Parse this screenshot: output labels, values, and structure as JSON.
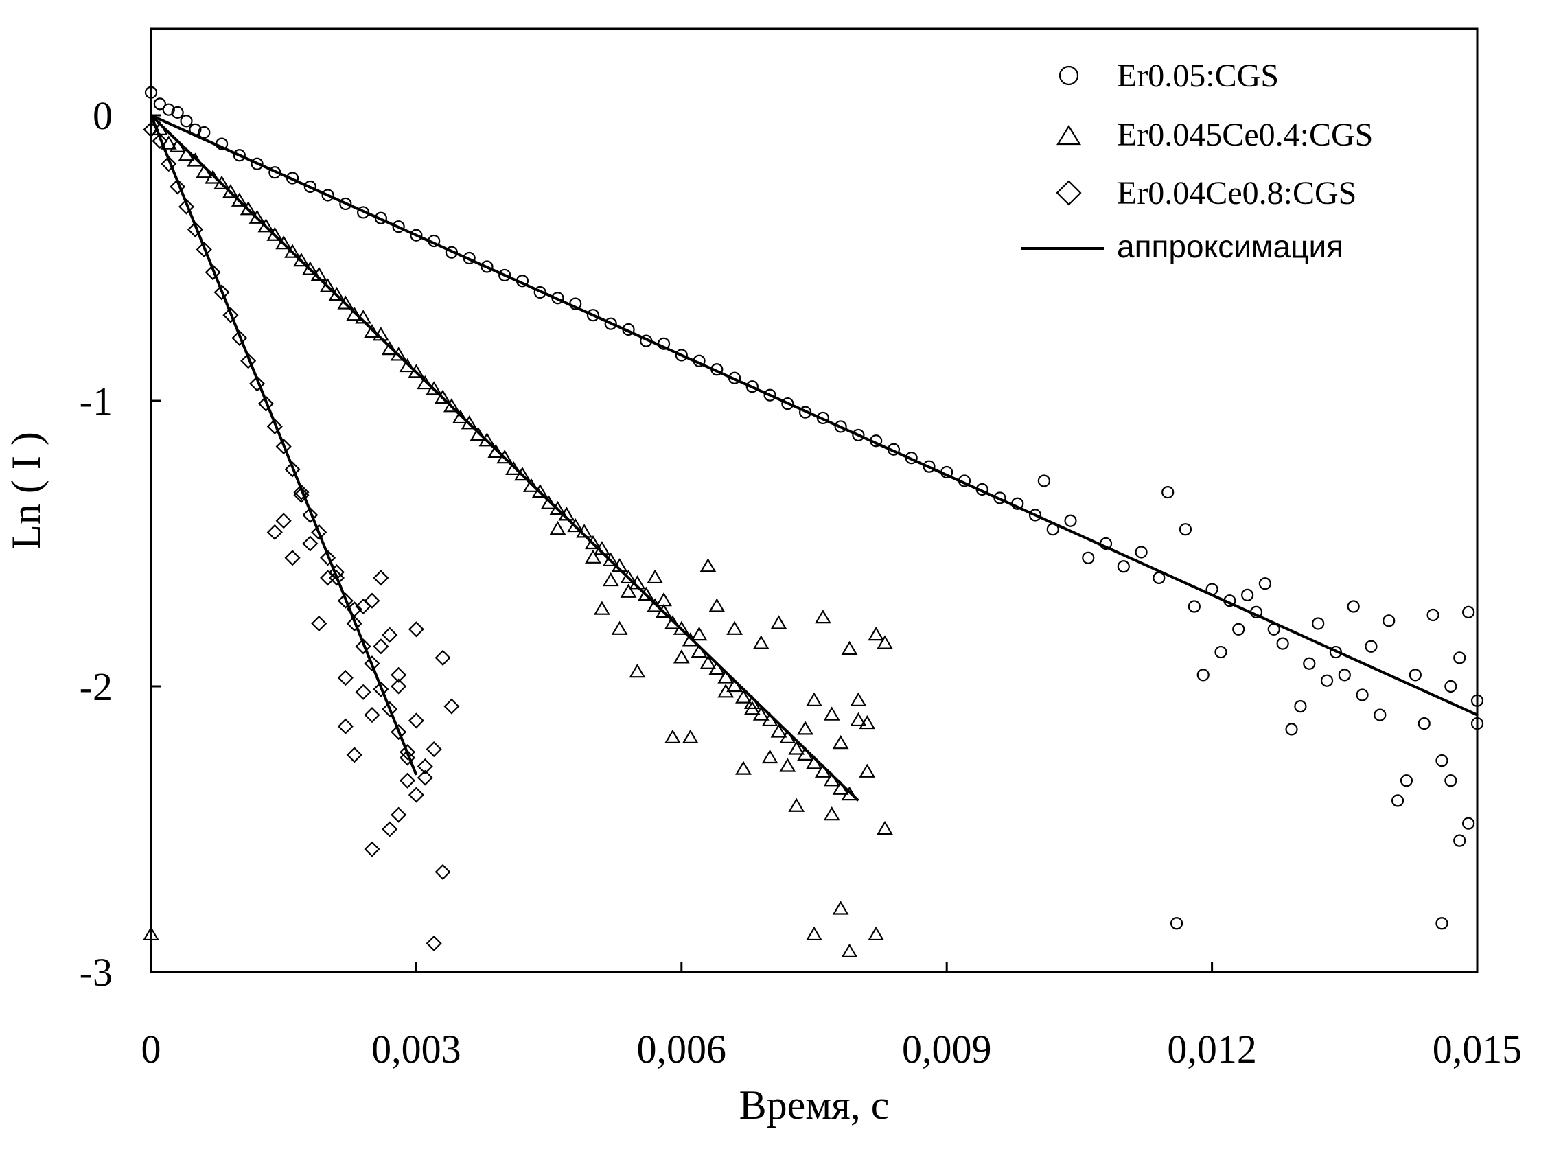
{
  "chart_data": {
    "type": "scatter",
    "title": "",
    "xlabel": "Время, с",
    "ylabel": "Ln ( I )",
    "xlim": [
      0,
      0.015
    ],
    "ylim": [
      -3,
      0.3
    ],
    "x_ticks": [
      0,
      0.003,
      0.006,
      0.009,
      0.012,
      0.015
    ],
    "x_tick_labels": [
      "0",
      "0,003",
      "0,006",
      "0,009",
      "0,012",
      "0,015"
    ],
    "y_ticks": [
      0,
      -1,
      -2,
      -3
    ],
    "y_tick_labels": [
      "0",
      "-1",
      "-2",
      "-3"
    ],
    "grid": false,
    "legend_position": "top-right",
    "series": [
      {
        "name": "Er0.05:CGS",
        "marker": "circle",
        "fit": {
          "slope": -140,
          "intercept": 0,
          "x_range": [
            0,
            0.015
          ]
        },
        "points": [
          [
            0.0,
            0.08
          ],
          [
            0.0001,
            0.04
          ],
          [
            0.0002,
            0.02
          ],
          [
            0.0003,
            0.01
          ],
          [
            0.0004,
            -0.02
          ],
          [
            0.0005,
            -0.05
          ],
          [
            0.0006,
            -0.06
          ],
          [
            0.0008,
            -0.1
          ],
          [
            0.001,
            -0.14
          ],
          [
            0.0012,
            -0.17
          ],
          [
            0.0014,
            -0.2
          ],
          [
            0.0016,
            -0.22
          ],
          [
            0.0018,
            -0.25
          ],
          [
            0.002,
            -0.28
          ],
          [
            0.0022,
            -0.31
          ],
          [
            0.0024,
            -0.34
          ],
          [
            0.0026,
            -0.36
          ],
          [
            0.0028,
            -0.39
          ],
          [
            0.003,
            -0.42
          ],
          [
            0.0032,
            -0.44
          ],
          [
            0.0034,
            -0.48
          ],
          [
            0.0036,
            -0.5
          ],
          [
            0.0038,
            -0.53
          ],
          [
            0.004,
            -0.56
          ],
          [
            0.0042,
            -0.58
          ],
          [
            0.0044,
            -0.62
          ],
          [
            0.0046,
            -0.64
          ],
          [
            0.0048,
            -0.66
          ],
          [
            0.005,
            -0.7
          ],
          [
            0.0052,
            -0.73
          ],
          [
            0.0054,
            -0.75
          ],
          [
            0.0056,
            -0.79
          ],
          [
            0.0058,
            -0.8
          ],
          [
            0.006,
            -0.84
          ],
          [
            0.0062,
            -0.86
          ],
          [
            0.0064,
            -0.89
          ],
          [
            0.0066,
            -0.92
          ],
          [
            0.0068,
            -0.95
          ],
          [
            0.007,
            -0.98
          ],
          [
            0.0072,
            -1.01
          ],
          [
            0.0074,
            -1.04
          ],
          [
            0.0076,
            -1.06
          ],
          [
            0.0078,
            -1.09
          ],
          [
            0.008,
            -1.12
          ],
          [
            0.0082,
            -1.14
          ],
          [
            0.0084,
            -1.17
          ],
          [
            0.0086,
            -1.2
          ],
          [
            0.0088,
            -1.23
          ],
          [
            0.009,
            -1.25
          ],
          [
            0.0092,
            -1.28
          ],
          [
            0.0094,
            -1.31
          ],
          [
            0.0096,
            -1.34
          ],
          [
            0.0098,
            -1.36
          ],
          [
            0.01,
            -1.4
          ],
          [
            0.0101,
            -1.28
          ],
          [
            0.0102,
            -1.45
          ],
          [
            0.0104,
            -1.42
          ],
          [
            0.0106,
            -1.55
          ],
          [
            0.0108,
            -1.5
          ],
          [
            0.011,
            -1.58
          ],
          [
            0.0112,
            -1.53
          ],
          [
            0.0114,
            -1.62
          ],
          [
            0.0115,
            -1.32
          ],
          [
            0.0116,
            -2.83
          ],
          [
            0.0117,
            -1.45
          ],
          [
            0.0118,
            -1.72
          ],
          [
            0.0119,
            -1.96
          ],
          [
            0.012,
            -1.66
          ],
          [
            0.0121,
            -1.88
          ],
          [
            0.0122,
            -1.7
          ],
          [
            0.0123,
            -1.8
          ],
          [
            0.0124,
            -1.68
          ],
          [
            0.0125,
            -1.74
          ],
          [
            0.0126,
            -1.64
          ],
          [
            0.0127,
            -1.8
          ],
          [
            0.0128,
            -1.85
          ],
          [
            0.0129,
            -2.15
          ],
          [
            0.013,
            -2.07
          ],
          [
            0.0131,
            -1.92
          ],
          [
            0.0132,
            -1.78
          ],
          [
            0.0133,
            -1.98
          ],
          [
            0.0134,
            -1.88
          ],
          [
            0.0135,
            -1.96
          ],
          [
            0.0136,
            -1.72
          ],
          [
            0.0137,
            -2.03
          ],
          [
            0.0138,
            -1.86
          ],
          [
            0.0139,
            -2.1
          ],
          [
            0.014,
            -1.77
          ],
          [
            0.0141,
            -2.4
          ],
          [
            0.0142,
            -2.33
          ],
          [
            0.0143,
            -1.96
          ],
          [
            0.0144,
            -2.13
          ],
          [
            0.0145,
            -1.75
          ],
          [
            0.0146,
            -2.26
          ],
          [
            0.0146,
            -2.83
          ],
          [
            0.0147,
            -2.0
          ],
          [
            0.0147,
            -2.33
          ],
          [
            0.0148,
            -1.9
          ],
          [
            0.0148,
            -2.54
          ],
          [
            0.0149,
            -2.48
          ],
          [
            0.0149,
            -1.74
          ],
          [
            0.015,
            -2.05
          ],
          [
            0.015,
            -2.13
          ]
        ]
      },
      {
        "name": "Er0.045Ce0.4:CGS",
        "marker": "triangle",
        "fit": {
          "slope": -300,
          "intercept": 0,
          "x_range": [
            0,
            0.008
          ]
        },
        "points": [
          [
            0.0,
            -2.87
          ],
          [
            0.0001,
            -0.05
          ],
          [
            0.0002,
            -0.1
          ],
          [
            0.0003,
            -0.11
          ],
          [
            0.0004,
            -0.14
          ],
          [
            0.0005,
            -0.16
          ],
          [
            0.0006,
            -0.2
          ],
          [
            0.0007,
            -0.22
          ],
          [
            0.0008,
            -0.24
          ],
          [
            0.0009,
            -0.27
          ],
          [
            0.001,
            -0.3
          ],
          [
            0.0011,
            -0.33
          ],
          [
            0.0012,
            -0.36
          ],
          [
            0.0013,
            -0.39
          ],
          [
            0.0014,
            -0.42
          ],
          [
            0.0015,
            -0.45
          ],
          [
            0.0016,
            -0.48
          ],
          [
            0.0017,
            -0.51
          ],
          [
            0.0018,
            -0.54
          ],
          [
            0.0019,
            -0.56
          ],
          [
            0.002,
            -0.6
          ],
          [
            0.0021,
            -0.63
          ],
          [
            0.0022,
            -0.66
          ],
          [
            0.0023,
            -0.7
          ],
          [
            0.0024,
            -0.71
          ],
          [
            0.0025,
            -0.76
          ],
          [
            0.0026,
            -0.77
          ],
          [
            0.0027,
            -0.82
          ],
          [
            0.0028,
            -0.84
          ],
          [
            0.0029,
            -0.88
          ],
          [
            0.003,
            -0.9
          ],
          [
            0.0031,
            -0.94
          ],
          [
            0.0032,
            -0.96
          ],
          [
            0.0033,
            -0.99
          ],
          [
            0.0034,
            -1.02
          ],
          [
            0.0035,
            -1.06
          ],
          [
            0.0036,
            -1.08
          ],
          [
            0.0037,
            -1.12
          ],
          [
            0.0038,
            -1.14
          ],
          [
            0.0039,
            -1.18
          ],
          [
            0.004,
            -1.2
          ],
          [
            0.0041,
            -1.24
          ],
          [
            0.0042,
            -1.26
          ],
          [
            0.0043,
            -1.3
          ],
          [
            0.0044,
            -1.32
          ],
          [
            0.0045,
            -1.36
          ],
          [
            0.0046,
            -1.38
          ],
          [
            0.0047,
            -1.4
          ],
          [
            0.0048,
            -1.44
          ],
          [
            0.0049,
            -1.46
          ],
          [
            0.005,
            -1.5
          ],
          [
            0.0051,
            -1.52
          ],
          [
            0.0052,
            -1.56
          ],
          [
            0.0053,
            -1.58
          ],
          [
            0.0054,
            -1.62
          ],
          [
            0.0055,
            -1.64
          ],
          [
            0.0056,
            -1.68
          ],
          [
            0.0057,
            -1.72
          ],
          [
            0.0058,
            -1.74
          ],
          [
            0.0059,
            -1.78
          ],
          [
            0.006,
            -1.8
          ],
          [
            0.0061,
            -1.84
          ],
          [
            0.0062,
            -1.88
          ],
          [
            0.0063,
            -1.92
          ],
          [
            0.0064,
            -1.94
          ],
          [
            0.0065,
            -1.97
          ],
          [
            0.0066,
            -2.0
          ],
          [
            0.0067,
            -2.04
          ],
          [
            0.0068,
            -2.06
          ],
          [
            0.0069,
            -2.1
          ],
          [
            0.007,
            -2.12
          ],
          [
            0.0071,
            -2.16
          ],
          [
            0.0072,
            -2.18
          ],
          [
            0.0073,
            -2.22
          ],
          [
            0.0074,
            -2.24
          ],
          [
            0.0075,
            -2.27
          ],
          [
            0.0076,
            -2.3
          ],
          [
            0.0077,
            -2.33
          ],
          [
            0.0078,
            -2.36
          ],
          [
            0.0079,
            -2.38
          ],
          [
            0.0046,
            -1.45
          ],
          [
            0.0047,
            -1.4
          ],
          [
            0.005,
            -1.55
          ],
          [
            0.0051,
            -1.73
          ],
          [
            0.0052,
            -1.63
          ],
          [
            0.0053,
            -1.8
          ],
          [
            0.0054,
            -1.67
          ],
          [
            0.0055,
            -1.95
          ],
          [
            0.0056,
            -1.68
          ],
          [
            0.0057,
            -1.62
          ],
          [
            0.0058,
            -1.7
          ],
          [
            0.0059,
            -2.18
          ],
          [
            0.006,
            -1.9
          ],
          [
            0.0061,
            -2.18
          ],
          [
            0.0062,
            -1.82
          ],
          [
            0.0063,
            -1.58
          ],
          [
            0.0064,
            -1.72
          ],
          [
            0.0065,
            -2.02
          ],
          [
            0.0066,
            -1.8
          ],
          [
            0.0067,
            -2.29
          ],
          [
            0.0068,
            -2.08
          ],
          [
            0.0069,
            -1.85
          ],
          [
            0.007,
            -2.25
          ],
          [
            0.0071,
            -1.78
          ],
          [
            0.0072,
            -2.28
          ],
          [
            0.0073,
            -2.42
          ],
          [
            0.0074,
            -2.15
          ],
          [
            0.0075,
            -2.05
          ],
          [
            0.0075,
            -2.87
          ],
          [
            0.0076,
            -1.76
          ],
          [
            0.0077,
            -2.45
          ],
          [
            0.0077,
            -2.1
          ],
          [
            0.0078,
            -2.78
          ],
          [
            0.0078,
            -2.2
          ],
          [
            0.0079,
            -1.87
          ],
          [
            0.0079,
            -2.38
          ],
          [
            0.008,
            -2.05
          ],
          [
            0.008,
            -2.12
          ],
          [
            0.0081,
            -2.3
          ],
          [
            0.0081,
            -2.13
          ],
          [
            0.0082,
            -1.82
          ],
          [
            0.0082,
            -2.87
          ],
          [
            0.0083,
            -2.5
          ],
          [
            0.0083,
            -1.85
          ],
          [
            0.0079,
            -2.93
          ]
        ]
      },
      {
        "name": "Er0.04Ce0.8:CGS",
        "marker": "diamond",
        "fit": {
          "slope": -770,
          "intercept": 0,
          "x_range": [
            0,
            0.003
          ]
        },
        "points": [
          [
            0.0,
            -0.05
          ],
          [
            0.0001,
            -0.09
          ],
          [
            0.0002,
            -0.17
          ],
          [
            0.0003,
            -0.25
          ],
          [
            0.0004,
            -0.32
          ],
          [
            0.0005,
            -0.4
          ],
          [
            0.0006,
            -0.47
          ],
          [
            0.0007,
            -0.55
          ],
          [
            0.0008,
            -0.62
          ],
          [
            0.0009,
            -0.7
          ],
          [
            0.001,
            -0.78
          ],
          [
            0.0011,
            -0.86
          ],
          [
            0.0012,
            -0.94
          ],
          [
            0.0013,
            -1.01
          ],
          [
            0.0014,
            -1.09
          ],
          [
            0.0015,
            -1.16
          ],
          [
            0.0016,
            -1.24
          ],
          [
            0.0017,
            -1.32
          ],
          [
            0.0018,
            -1.4
          ],
          [
            0.0019,
            -1.46
          ],
          [
            0.002,
            -1.55
          ],
          [
            0.0021,
            -1.62
          ],
          [
            0.0022,
            -1.7
          ],
          [
            0.0023,
            -1.78
          ],
          [
            0.0024,
            -1.86
          ],
          [
            0.0025,
            -1.92
          ],
          [
            0.0026,
            -2.01
          ],
          [
            0.0027,
            -2.08
          ],
          [
            0.0028,
            -2.16
          ],
          [
            0.0029,
            -2.23
          ],
          [
            0.0014,
            -1.46
          ],
          [
            0.0015,
            -1.42
          ],
          [
            0.0016,
            -1.55
          ],
          [
            0.0017,
            -1.33
          ],
          [
            0.0018,
            -1.5
          ],
          [
            0.0019,
            -1.78
          ],
          [
            0.002,
            -1.62
          ],
          [
            0.0021,
            -1.6
          ],
          [
            0.0022,
            -1.97
          ],
          [
            0.0023,
            -1.73
          ],
          [
            0.0024,
            -2.02
          ],
          [
            0.0025,
            -2.1
          ],
          [
            0.0026,
            -1.62
          ],
          [
            0.0027,
            -1.82
          ],
          [
            0.0028,
            -1.96
          ],
          [
            0.0029,
            -2.25
          ],
          [
            0.003,
            -2.12
          ],
          [
            0.0031,
            -2.28
          ],
          [
            0.0032,
            -2.22
          ],
          [
            0.0033,
            -1.9
          ],
          [
            0.0022,
            -2.14
          ],
          [
            0.0023,
            -2.24
          ],
          [
            0.0024,
            -1.72
          ],
          [
            0.0025,
            -1.7
          ],
          [
            0.0025,
            -2.57
          ],
          [
            0.0026,
            -1.86
          ],
          [
            0.0027,
            -2.5
          ],
          [
            0.0028,
            -2.45
          ],
          [
            0.0029,
            -2.33
          ],
          [
            0.003,
            -1.8
          ],
          [
            0.0031,
            -2.32
          ],
          [
            0.0032,
            -2.9
          ],
          [
            0.0033,
            -2.65
          ],
          [
            0.0034,
            -2.07
          ],
          [
            0.003,
            -2.38
          ],
          [
            0.0028,
            -2.0
          ]
        ]
      }
    ],
    "legend_line_label": "аппроксимация"
  }
}
